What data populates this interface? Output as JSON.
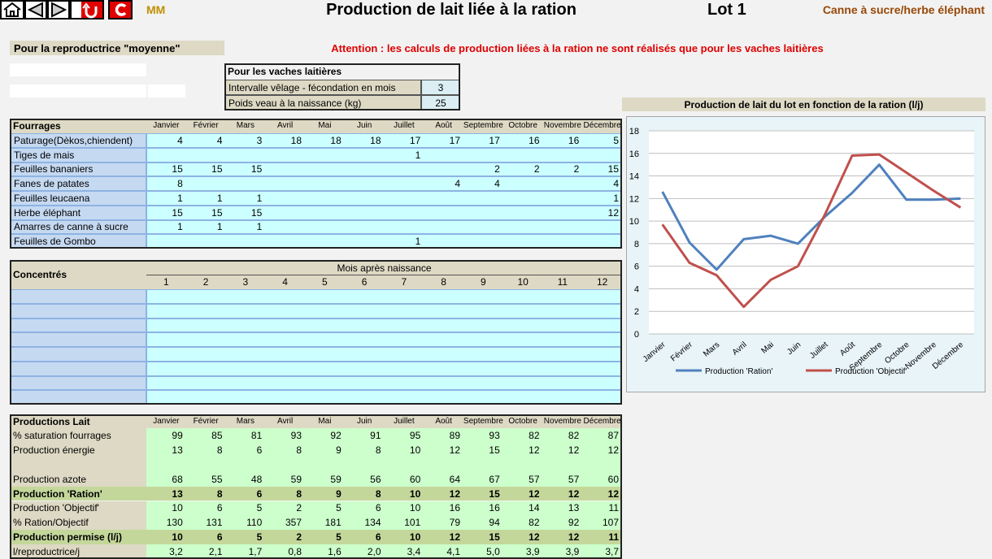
{
  "toolbar": {
    "user": "MM"
  },
  "header": {
    "title": "Production de lait liée à la ration",
    "lot": "Lot 1",
    "ration": "Canne à sucre/herbe éléphant"
  },
  "subtitle": "Pour la reproductrice \"moyenne\"",
  "warning": "Attention : les calculs de production liées à la ration ne sont réalisés que pour les vaches laitières",
  "vaches": {
    "title": "Pour les vaches laitières",
    "rows": [
      {
        "label": "Intervalle vêlage - fécondation en mois",
        "value": 3
      },
      {
        "label": "Poids veau à la naissance (kg)",
        "value": 25
      }
    ]
  },
  "months": [
    "Janvier",
    "Février",
    "Mars",
    "Avril",
    "Mai",
    "Juin",
    "Juillet",
    "Août",
    "Septembre",
    "Octobre",
    "Novembre",
    "Décembre"
  ],
  "fourrages": {
    "title": "Fourrages",
    "rows": [
      {
        "label": "Paturage(Dèkos,chiendent)",
        "values": [
          4,
          4,
          3,
          18,
          18,
          18,
          17,
          17,
          17,
          16,
          16,
          5
        ]
      },
      {
        "label": "Tiges de mais",
        "values": [
          null,
          null,
          null,
          null,
          null,
          null,
          1,
          null,
          null,
          null,
          null,
          null
        ]
      },
      {
        "label": "Feuilles bananiers",
        "values": [
          15,
          15,
          15,
          null,
          null,
          null,
          null,
          null,
          2,
          2,
          2,
          15
        ]
      },
      {
        "label": "Fanes de patates",
        "values": [
          8,
          null,
          null,
          null,
          null,
          null,
          null,
          4,
          4,
          null,
          null,
          4
        ]
      },
      {
        "label": "Feuilles leucaena",
        "values": [
          1,
          1,
          1,
          null,
          null,
          null,
          null,
          null,
          null,
          null,
          null,
          1
        ]
      },
      {
        "label": "Herbe éléphant",
        "values": [
          15,
          15,
          15,
          null,
          null,
          null,
          null,
          null,
          null,
          null,
          null,
          12
        ]
      },
      {
        "label": "Amarres de canne à sucre",
        "values": [
          1,
          1,
          1,
          null,
          null,
          null,
          null,
          null,
          null,
          null,
          null,
          null
        ]
      },
      {
        "label": "Feuilles de Gombo",
        "values": [
          null,
          null,
          null,
          null,
          null,
          null,
          1,
          null,
          null,
          null,
          null,
          null
        ]
      }
    ]
  },
  "concentres": {
    "title": "Concentrés",
    "subtitle": "Mois après naissance",
    "months": [
      1,
      2,
      3,
      4,
      5,
      6,
      7,
      8,
      9,
      10,
      11,
      12
    ]
  },
  "productions": {
    "title": "Productions Lait",
    "rows": [
      {
        "label": "% saturation fourrages",
        "values": [
          99,
          85,
          81,
          93,
          92,
          91,
          95,
          89,
          93,
          82,
          82,
          87
        ]
      },
      {
        "label": "Production énergie",
        "values": [
          13,
          8,
          6,
          8,
          9,
          8,
          10,
          12,
          15,
          12,
          12,
          12
        ]
      },
      {
        "label": "Production azote",
        "values": [
          68,
          55,
          48,
          59,
          59,
          56,
          60,
          64,
          67,
          57,
          57,
          60
        ]
      },
      {
        "label": "Production 'Ration'",
        "bold": true,
        "values": [
          13,
          8,
          6,
          8,
          9,
          8,
          10,
          12,
          15,
          12,
          12,
          12
        ]
      },
      {
        "label": "Production 'Objectif'",
        "values": [
          10,
          6,
          5,
          2,
          5,
          6,
          10,
          16,
          16,
          14,
          13,
          11
        ]
      },
      {
        "label": "% Ration/Objectif",
        "values": [
          130,
          131,
          110,
          357,
          181,
          134,
          101,
          79,
          94,
          82,
          92,
          107
        ]
      },
      {
        "label": "Production permise (l/j)",
        "bold": true,
        "values": [
          10,
          6,
          5,
          2,
          5,
          6,
          10,
          12,
          15,
          12,
          12,
          11
        ]
      },
      {
        "label": "l/reproductrice/j",
        "values": [
          "3,2",
          "2,1",
          "1,7",
          "0,8",
          "1,6",
          "2,0",
          "3,4",
          "4,1",
          "5,0",
          "3,9",
          "3,9",
          "3,7"
        ]
      }
    ]
  },
  "chart_data": {
    "type": "line",
    "title": "Production de lait du lot en fonction de la ration (l/j)",
    "categories": [
      "Janvier",
      "Février",
      "Mars",
      "Avril",
      "Mai",
      "Juin",
      "Juillet",
      "Août",
      "Septembre",
      "Octobre",
      "Novembre",
      "Décembre"
    ],
    "series": [
      {
        "name": "Production 'Ration'",
        "color": "#4f81bd",
        "values": [
          12.6,
          8.1,
          5.7,
          8.4,
          8.7,
          8.0,
          10.4,
          12.5,
          15.0,
          11.9,
          11.9,
          12.0
        ]
      },
      {
        "name": "Production 'Objectif'",
        "color": "#c0504d",
        "values": [
          9.7,
          6.3,
          5.2,
          2.4,
          4.8,
          6.0,
          10.6,
          15.8,
          15.9,
          14.3,
          12.7,
          11.2
        ]
      }
    ],
    "ylim": [
      0,
      18
    ],
    "yticks": [
      0,
      2,
      4,
      6,
      8,
      10,
      12,
      14,
      16,
      18
    ],
    "grid": true,
    "legend": "bottom"
  }
}
